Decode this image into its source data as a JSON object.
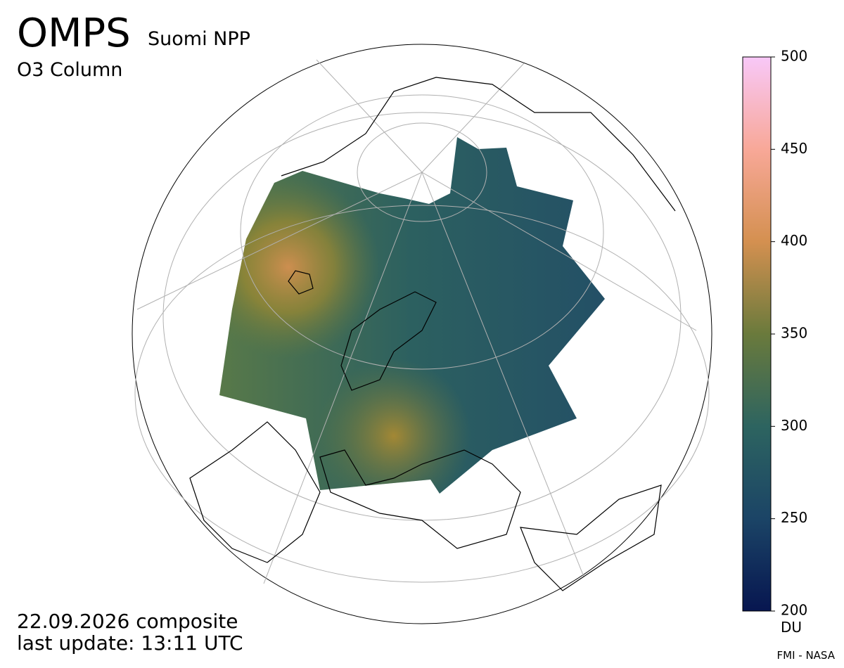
{
  "header": {
    "title": "OMPS",
    "satellite": "Suomi NPP",
    "product": "O3 Column"
  },
  "colorbar": {
    "lim": [
      200,
      500
    ],
    "ticks": [
      200,
      250,
      300,
      350,
      400,
      450,
      500
    ],
    "unit": "DU",
    "colors": [
      "#071650",
      "#1b4466",
      "#2d6460",
      "#6a7a3c",
      "#d49050",
      "#f8a898",
      "#f8c8f8"
    ]
  },
  "footer": {
    "date": "22.09.2026 composite",
    "update": "last update: 13:11 UTC",
    "credit": "FMI - NASA"
  }
}
